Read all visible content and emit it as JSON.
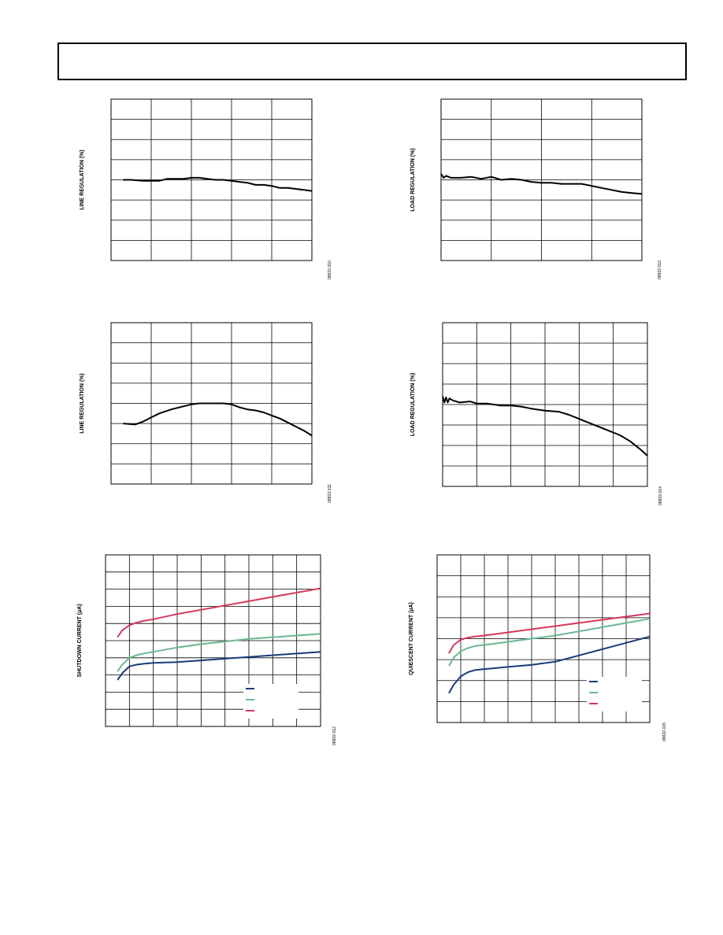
{
  "page": {
    "header_text": ""
  },
  "chart_data": [
    {
      "id": "chart-line-reg-top",
      "type": "line",
      "ylabel": "LINE REGULATION (%)",
      "figure_id": "08822-010",
      "grid": true,
      "xlim": [
        0,
        5
      ],
      "ylim": [
        -4,
        4
      ],
      "series": [
        {
          "color": "#000000",
          "x": [
            0.3,
            0.5,
            0.8,
            1.0,
            1.2,
            1.4,
            1.6,
            1.8,
            2.0,
            2.2,
            2.4,
            2.6,
            2.8,
            3.0,
            3.2,
            3.4,
            3.6,
            3.8,
            4.0,
            4.2,
            4.4,
            4.6,
            4.8,
            5.0
          ],
          "y": [
            0.0,
            0.0,
            -0.05,
            -0.05,
            -0.05,
            0.05,
            0.05,
            0.05,
            0.1,
            0.1,
            0.05,
            0.0,
            0.0,
            -0.05,
            -0.1,
            -0.15,
            -0.25,
            -0.25,
            -0.3,
            -0.4,
            -0.4,
            -0.45,
            -0.5,
            -0.55
          ]
        }
      ]
    },
    {
      "id": "chart-load-reg-top",
      "type": "line",
      "ylabel": "LOAD REGULATION (%)",
      "figure_id": "08822-013",
      "grid": true,
      "xlim": [
        0,
        4
      ],
      "ylim": [
        -4,
        4
      ],
      "series": [
        {
          "color": "#000000",
          "x": [
            0.0,
            0.05,
            0.1,
            0.15,
            0.2,
            0.4,
            0.6,
            0.8,
            1.0,
            1.2,
            1.4,
            1.6,
            1.8,
            2.0,
            2.2,
            2.4,
            2.6,
            2.8,
            3.0,
            3.2,
            3.4,
            3.6,
            3.8,
            4.0
          ],
          "y": [
            0.3,
            0.1,
            0.2,
            0.15,
            0.1,
            0.1,
            0.15,
            0.05,
            0.15,
            0.0,
            0.05,
            0.0,
            -0.1,
            -0.15,
            -0.15,
            -0.2,
            -0.2,
            -0.2,
            -0.3,
            -0.4,
            -0.5,
            -0.6,
            -0.65,
            -0.7
          ]
        }
      ]
    },
    {
      "id": "chart-line-reg-mid",
      "type": "line",
      "ylabel": "LINE REGULATION (%)",
      "figure_id": "08822-011",
      "grid": true,
      "xlim": [
        0,
        5
      ],
      "ylim": [
        -3,
        5
      ],
      "series": [
        {
          "color": "#000000",
          "x": [
            0.3,
            0.6,
            0.8,
            1.0,
            1.2,
            1.5,
            1.8,
            2.0,
            2.2,
            2.5,
            2.8,
            3.0,
            3.2,
            3.4,
            3.6,
            3.8,
            4.0,
            4.2,
            4.4,
            4.6,
            4.8,
            5.0
          ],
          "y": [
            0.0,
            -0.05,
            0.1,
            0.3,
            0.5,
            0.7,
            0.85,
            0.95,
            1.0,
            1.0,
            1.0,
            0.95,
            0.8,
            0.7,
            0.65,
            0.55,
            0.4,
            0.25,
            0.05,
            -0.15,
            -0.35,
            -0.6
          ]
        }
      ]
    },
    {
      "id": "chart-load-reg-mid",
      "type": "line",
      "ylabel": "LOAD REGULATION (%)",
      "figure_id": "08822-014",
      "grid": true,
      "xlim": [
        0,
        6
      ],
      "ylim": [
        -4,
        4
      ],
      "series": [
        {
          "color": "#000000",
          "x": [
            0.0,
            0.05,
            0.1,
            0.15,
            0.2,
            0.3,
            0.5,
            0.8,
            1.0,
            1.3,
            1.7,
            2.0,
            2.3,
            2.6,
            3.0,
            3.4,
            3.7,
            4.0,
            4.3,
            4.6,
            4.9,
            5.2,
            5.5,
            5.8,
            6.0
          ],
          "y": [
            0.4,
            0.1,
            0.35,
            0.1,
            0.3,
            0.2,
            0.1,
            0.15,
            0.05,
            0.05,
            -0.05,
            -0.05,
            -0.1,
            -0.2,
            -0.3,
            -0.35,
            -0.5,
            -0.7,
            -0.9,
            -1.1,
            -1.3,
            -1.5,
            -1.8,
            -2.2,
            -2.5
          ]
        }
      ]
    },
    {
      "id": "chart-shutdown-current",
      "type": "line",
      "ylabel": "SHUTDOWN CURRENT (µA)",
      "figure_id": "08822-012",
      "grid": true,
      "xlim": [
        0,
        9
      ],
      "ylim": [
        0,
        10
      ],
      "legend_placement": "bottom-right",
      "series": [
        {
          "color": "#1a3a7a",
          "x": [
            0.5,
            0.7,
            1.0,
            1.3,
            1.6,
            2.0,
            3.0,
            4.0,
            5.0,
            6.0,
            7.0,
            8.0,
            9.0
          ],
          "y": [
            2.7,
            3.1,
            3.5,
            3.6,
            3.65,
            3.7,
            3.75,
            3.85,
            3.95,
            4.05,
            4.15,
            4.25,
            4.35
          ]
        },
        {
          "color": "#6bb891",
          "x": [
            0.5,
            0.7,
            1.0,
            1.3,
            1.6,
            2.0,
            3.0,
            4.0,
            5.0,
            6.0,
            7.0,
            8.0,
            9.0
          ],
          "y": [
            3.2,
            3.6,
            4.0,
            4.15,
            4.25,
            4.35,
            4.6,
            4.8,
            4.95,
            5.1,
            5.2,
            5.3,
            5.4
          ]
        },
        {
          "color": "#d4385c",
          "x": [
            0.5,
            0.7,
            1.0,
            1.3,
            1.6,
            2.0,
            3.0,
            4.0,
            5.0,
            6.0,
            7.0,
            8.0,
            9.0
          ],
          "y": [
            5.2,
            5.6,
            5.9,
            6.05,
            6.15,
            6.25,
            6.55,
            6.8,
            7.05,
            7.3,
            7.55,
            7.8,
            8.05
          ]
        }
      ]
    },
    {
      "id": "chart-quiescent-current",
      "type": "line",
      "ylabel": "QUIESCENT CURRENT (µA)",
      "figure_id": "08822-015",
      "grid": true,
      "xlim": [
        0,
        9
      ],
      "ylim": [
        0,
        8
      ],
      "legend_placement": "bottom-right",
      "series": [
        {
          "color": "#1a3a7a",
          "x": [
            0.5,
            0.7,
            1.0,
            1.3,
            1.6,
            2.0,
            3.0,
            4.0,
            5.0,
            6.0,
            7.0,
            8.0,
            9.0
          ],
          "y": [
            1.4,
            1.8,
            2.2,
            2.4,
            2.5,
            2.55,
            2.65,
            2.75,
            2.9,
            3.2,
            3.5,
            3.8,
            4.1
          ]
        },
        {
          "color": "#6bb891",
          "x": [
            0.5,
            0.7,
            1.0,
            1.3,
            1.6,
            2.0,
            3.0,
            4.0,
            5.0,
            6.0,
            7.0,
            8.0,
            9.0
          ],
          "y": [
            2.7,
            3.1,
            3.4,
            3.55,
            3.65,
            3.7,
            3.85,
            4.0,
            4.15,
            4.35,
            4.55,
            4.75,
            4.95
          ]
        },
        {
          "color": "#d4385c",
          "x": [
            0.5,
            0.7,
            1.0,
            1.3,
            1.6,
            2.0,
            3.0,
            4.0,
            5.0,
            6.0,
            7.0,
            8.0,
            9.0
          ],
          "y": [
            3.3,
            3.7,
            3.95,
            4.05,
            4.1,
            4.15,
            4.3,
            4.45,
            4.6,
            4.75,
            4.9,
            5.05,
            5.2
          ]
        }
      ]
    }
  ]
}
